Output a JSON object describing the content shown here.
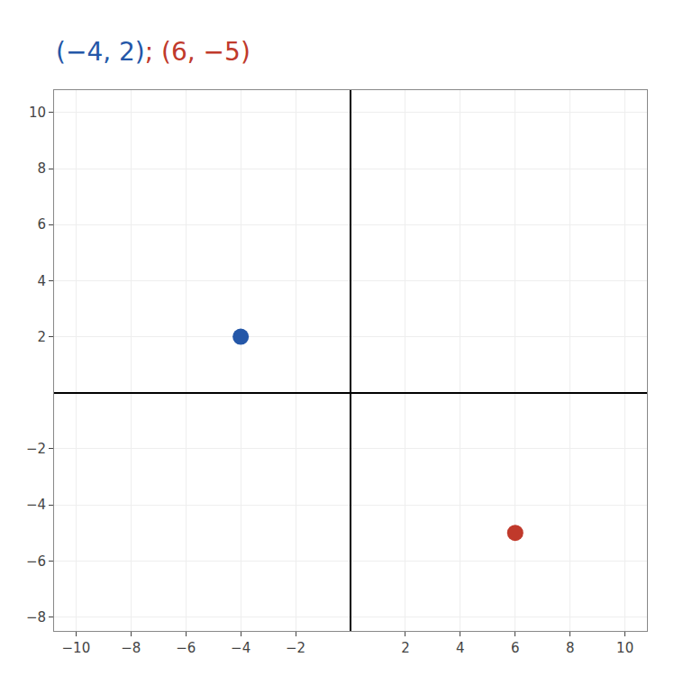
{
  "chart_data": {
    "type": "scatter",
    "annotations": [
      {
        "text": "(−4, 2)",
        "color": "#2457a8"
      },
      {
        "text": "; (6, −5)",
        "color": "#c0392b"
      }
    ],
    "x": [
      -4,
      6
    ],
    "values": [
      2,
      -5
    ],
    "colors": [
      "#2457a8",
      "#c0392b"
    ],
    "marker": "circle",
    "xlim": [
      -10.8,
      10.8
    ],
    "ylim": [
      -8.5,
      10.8
    ],
    "xticks": [
      {
        "value": -10,
        "label": "−10"
      },
      {
        "value": -8,
        "label": "−8"
      },
      {
        "value": -6,
        "label": "−6"
      },
      {
        "value": -4,
        "label": "−4"
      },
      {
        "value": -2,
        "label": "−2"
      },
      2,
      4,
      6,
      8,
      10
    ],
    "yticks": [
      {
        "value": -8,
        "label": "−8"
      },
      {
        "value": -6,
        "label": "−6"
      },
      {
        "value": -4,
        "label": "−4"
      },
      {
        "value": -2,
        "label": "−2"
      },
      2,
      4,
      6,
      8,
      10
    ],
    "grid": true
  }
}
